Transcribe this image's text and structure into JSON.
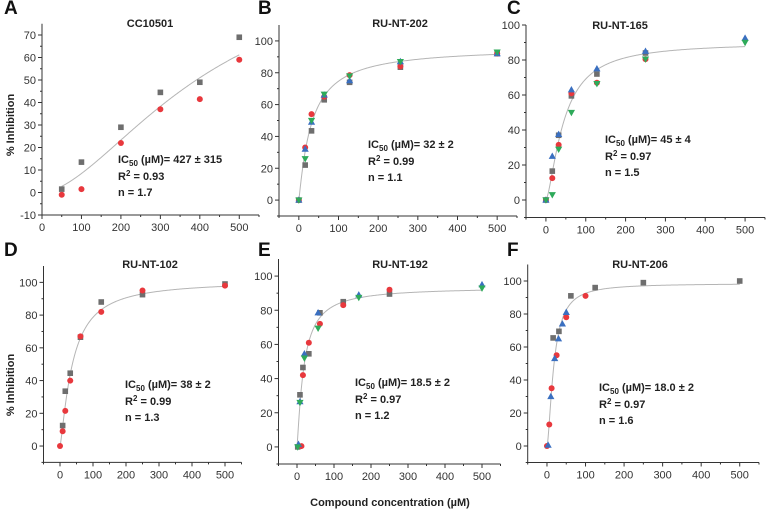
{
  "x_label": "Compound concentration (µM)",
  "y_label": "% Inhibition",
  "colors": {
    "gray": "#6e6e6e",
    "red": "#e8383d",
    "blue": "#3a6fc0",
    "green": "#2eaa5a",
    "fit": "#b5b5b5"
  },
  "annotation_labels": {
    "ic": "IC",
    "ic_sub": "50",
    "unit": "(µM)=",
    "r": "R",
    "r_sup": "2",
    "eq": "=",
    "n": "n ="
  },
  "chart_data": [
    {
      "type": "scatter",
      "letter": "A",
      "title": "CC10501",
      "xlim": [
        0,
        550
      ],
      "ylim": [
        -10,
        75
      ],
      "xticks": [
        0,
        100,
        200,
        300,
        400,
        500
      ],
      "yticks": [
        -10,
        0,
        10,
        20,
        30,
        40,
        50,
        60,
        70
      ],
      "ic50_value": "427 ± 315",
      "r2": "0.93",
      "n": "1.7",
      "fit": {
        "ic50": 427,
        "hill": 1.7,
        "top": 108,
        "x_range": [
          50,
          500
        ]
      },
      "series": [
        {
          "color": "gray",
          "marker": "square",
          "x": [
            50,
            100,
            200,
            300,
            400,
            500
          ],
          "y": [
            1.5,
            13.5,
            29,
            44.5,
            49,
            69
          ]
        },
        {
          "color": "red",
          "marker": "circle",
          "x": [
            50,
            100,
            200,
            300,
            400,
            500
          ],
          "y": [
            -1,
            1.5,
            22,
            37,
            41.5,
            59
          ]
        }
      ]
    },
    {
      "type": "scatter",
      "letter": "B",
      "title": "RU-NT-202",
      "xlim": [
        -50,
        550
      ],
      "ylim": [
        -10,
        110
      ],
      "xticks": [
        0,
        100,
        200,
        300,
        400,
        500
      ],
      "yticks": [
        0,
        20,
        40,
        60,
        80,
        100
      ],
      "ic50_value": "32 ± 2",
      "r2": "0.99",
      "n": "1.1",
      "fit": {
        "ic50": 32,
        "hill": 1.1,
        "top": 96,
        "x_range": [
          0,
          500
        ]
      },
      "series": [
        {
          "color": "gray",
          "marker": "square",
          "x": [
            0,
            16,
            32,
            64,
            128,
            256,
            500
          ],
          "y": [
            0,
            22,
            43.5,
            63,
            74,
            83.5,
            92
          ]
        },
        {
          "color": "red",
          "marker": "circle",
          "x": [
            0,
            16,
            32,
            64,
            128,
            256,
            500
          ],
          "y": [
            0,
            33,
            54,
            65,
            78.5,
            84,
            92
          ]
        },
        {
          "color": "blue",
          "marker": "triangle-up",
          "x": [
            0,
            16,
            32,
            64,
            128,
            256,
            500
          ],
          "y": [
            0,
            32,
            49,
            66,
            75,
            87,
            92
          ]
        },
        {
          "color": "green",
          "marker": "triangle-down",
          "x": [
            0,
            16,
            32,
            64,
            128,
            256,
            500
          ],
          "y": [
            0,
            26,
            50,
            66.5,
            78,
            87,
            93
          ]
        }
      ]
    },
    {
      "type": "scatter",
      "letter": "C",
      "title": "RU-NT-165",
      "xlim": [
        -50,
        550
      ],
      "ylim": [
        -10,
        100
      ],
      "xticks": [
        0,
        100,
        200,
        300,
        400,
        500
      ],
      "yticks": [
        0,
        20,
        40,
        60,
        80,
        100
      ],
      "ic50_value": "45 ± 4",
      "r2": "0.97",
      "n": "1.5",
      "fit": {
        "ic50": 45,
        "hill": 1.5,
        "top": 90,
        "x_range": [
          0,
          500
        ]
      },
      "series": [
        {
          "color": "gray",
          "marker": "square",
          "x": [
            0,
            16,
            32,
            64,
            128,
            250
          ],
          "y": [
            0,
            16.5,
            37,
            59.5,
            72,
            84
          ]
        },
        {
          "color": "red",
          "marker": "circle",
          "x": [
            0,
            16,
            32,
            64,
            128,
            250
          ],
          "y": [
            0,
            12.5,
            31.5,
            61,
            67,
            80.5
          ]
        },
        {
          "color": "blue",
          "marker": "triangle-up",
          "x": [
            0,
            16,
            32,
            64,
            128,
            250,
            500
          ],
          "y": [
            0,
            25,
            37.5,
            63,
            75,
            85,
            92.5
          ]
        },
        {
          "color": "green",
          "marker": "triangle-down",
          "x": [
            0,
            16,
            32,
            64,
            128,
            250,
            500
          ],
          "y": [
            0,
            3,
            29,
            50,
            66.5,
            80.5,
            90
          ]
        }
      ]
    },
    {
      "type": "scatter",
      "letter": "D",
      "title": "RU-NT-102",
      "xlim": [
        -50,
        550
      ],
      "ylim": [
        -10,
        110
      ],
      "xticks": [
        0,
        100,
        200,
        300,
        400,
        500
      ],
      "yticks": [
        0,
        20,
        40,
        60,
        80,
        100
      ],
      "ic50_value": "38 ± 2",
      "r2": "0.99",
      "n": "1.3",
      "fit": {
        "ic50": 38,
        "hill": 1.3,
        "top": 101,
        "x_range": [
          0,
          500
        ]
      },
      "series": [
        {
          "color": "gray",
          "marker": "square",
          "x": [
            8,
            16,
            31,
            62,
            125,
            250,
            500
          ],
          "y": [
            12.5,
            33.5,
            44.5,
            66.5,
            88,
            92.5,
            99
          ]
        },
        {
          "color": "red",
          "marker": "circle",
          "x": [
            0,
            8,
            16,
            31,
            62,
            125,
            250,
            500
          ],
          "y": [
            0,
            9,
            21.5,
            40,
            67,
            82,
            95,
            98
          ]
        }
      ]
    },
    {
      "type": "scatter",
      "letter": "E",
      "title": "RU-NT-192",
      "xlim": [
        -50,
        550
      ],
      "ylim": [
        -10,
        110
      ],
      "xticks": [
        0,
        100,
        200,
        300,
        400,
        500
      ],
      "yticks": [
        0,
        20,
        40,
        60,
        80,
        100
      ],
      "ic50_value": "18.5 ± 2",
      "r2": "0.97",
      "n": "1.2",
      "fit": {
        "ic50": 18.5,
        "hill": 1.2,
        "top": 93.5,
        "x_range": [
          0,
          500
        ]
      },
      "series": [
        {
          "color": "gray",
          "marker": "square",
          "x": [
            2,
            8,
            16,
            32,
            62,
            125,
            250
          ],
          "y": [
            0,
            30.5,
            46.5,
            54.5,
            78.5,
            85,
            89.5
          ]
        },
        {
          "color": "red",
          "marker": "circle",
          "x": [
            12,
            16,
            32,
            62,
            125,
            250
          ],
          "y": [
            0.5,
            42,
            61,
            72,
            83,
            92
          ]
        },
        {
          "color": "blue",
          "marker": "triangle-up",
          "x": [
            4,
            8,
            20,
            57,
            167,
            500
          ],
          "y": [
            1.5,
            26.5,
            54.5,
            78.5,
            89,
            95
          ]
        },
        {
          "color": "green",
          "marker": "triangle-down",
          "x": [
            2,
            8,
            20,
            57,
            167,
            500
          ],
          "y": [
            0,
            26,
            52,
            69.5,
            87.5,
            93
          ]
        }
      ]
    },
    {
      "type": "scatter",
      "letter": "F",
      "title": "RU-NT-206",
      "xlim": [
        -50,
        550
      ],
      "ylim": [
        -10,
        110
      ],
      "xticks": [
        0,
        100,
        200,
        300,
        400,
        500
      ],
      "yticks": [
        0,
        20,
        40,
        60,
        80,
        100
      ],
      "ic50_value": "18.0 ± 2",
      "r2": "0.97",
      "n": "1.6",
      "fit": {
        "ic50": 18,
        "hill": 1.6,
        "top": 98.5,
        "x_range": [
          0,
          500
        ]
      },
      "series": [
        {
          "color": "gray",
          "marker": "square",
          "x": [
            16,
            31,
            62,
            125,
            250,
            500
          ],
          "y": [
            65.5,
            69.5,
            91,
            96,
            99,
            100
          ]
        },
        {
          "color": "red",
          "marker": "circle",
          "x": [
            0,
            6,
            12,
            25,
            50,
            100
          ],
          "y": [
            0,
            13,
            35,
            55,
            78,
            91
          ]
        },
        {
          "color": "blue",
          "marker": "triangle-up",
          "x": [
            3,
            10,
            20,
            30,
            40,
            50
          ],
          "y": [
            0.5,
            30,
            53,
            65,
            74,
            81
          ]
        }
      ]
    }
  ]
}
